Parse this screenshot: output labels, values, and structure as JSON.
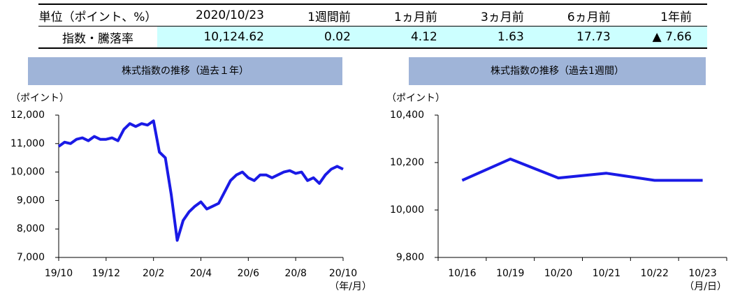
{
  "table": {
    "header": [
      "単位（ポイント、%）",
      "2020/10/23",
      "1週間前",
      "1ヵ月前",
      "3ヵ月前",
      "6ヵ月前",
      "1年前"
    ],
    "rows": [
      [
        "指数・騰落率",
        "10,124.62",
        "0.02",
        "4.12",
        "1.63",
        "17.73",
        "▲ 7.66"
      ]
    ]
  },
  "chart_data": [
    {
      "type": "line",
      "title": "株式指数の推移（過去１年）",
      "y_label": "（ポイント）",
      "x_label": "（年/月）",
      "categories": [
        "19/10",
        null,
        null,
        null,
        null,
        null,
        null,
        null,
        "19/12",
        null,
        null,
        null,
        null,
        null,
        null,
        null,
        "20/2",
        null,
        null,
        null,
        null,
        null,
        null,
        null,
        "20/4",
        null,
        null,
        null,
        null,
        null,
        null,
        null,
        "20/6",
        null,
        null,
        null,
        null,
        null,
        null,
        null,
        "20/8",
        null,
        null,
        null,
        null,
        null,
        null,
        null,
        "20/10"
      ],
      "series": [
        {
          "color": "#1a1ae6",
          "values": [
            10900,
            11050,
            11000,
            11150,
            11200,
            11100,
            11250,
            11150,
            11150,
            11200,
            11100,
            11500,
            11700,
            11600,
            11700,
            11650,
            11800,
            10700,
            10500,
            9200,
            7600,
            8300,
            8600,
            8800,
            8950,
            8700,
            8800,
            8900,
            9300,
            9700,
            9900,
            10000,
            9800,
            9700,
            9900,
            9900,
            9800,
            9900,
            10000,
            10050,
            9950,
            10000,
            9700,
            9800,
            9600,
            9900,
            10100,
            10200,
            10100
          ]
        }
      ],
      "ylim": [
        7000,
        12000
      ],
      "yticks": [
        {
          "value": 7000,
          "label": "7,000"
        },
        {
          "value": 8000,
          "label": "8,000"
        },
        {
          "value": 9000,
          "label": "9,000"
        },
        {
          "value": 10000,
          "label": "10,000"
        },
        {
          "value": 11000,
          "label": "11,000"
        },
        {
          "value": 12000,
          "label": "12,000"
        }
      ]
    },
    {
      "type": "line",
      "title": "株式指数の推移（過去1週間）",
      "y_label": "（ポイント）",
      "x_label": "（月/日）",
      "categories": [
        "10/16",
        "10/19",
        "10/20",
        "10/21",
        "10/22",
        "10/23"
      ],
      "series": [
        {
          "color": "#1a1ae6",
          "values": [
            10125,
            10215,
            10135,
            10155,
            10125,
            10125
          ]
        }
      ],
      "ylim": [
        9800,
        10400
      ],
      "yticks": [
        {
          "value": 9800,
          "label": "9,800"
        },
        {
          "value": 10000,
          "label": "10,000"
        },
        {
          "value": 10200,
          "label": "10,200"
        },
        {
          "value": 10400,
          "label": "10,400"
        }
      ]
    }
  ]
}
